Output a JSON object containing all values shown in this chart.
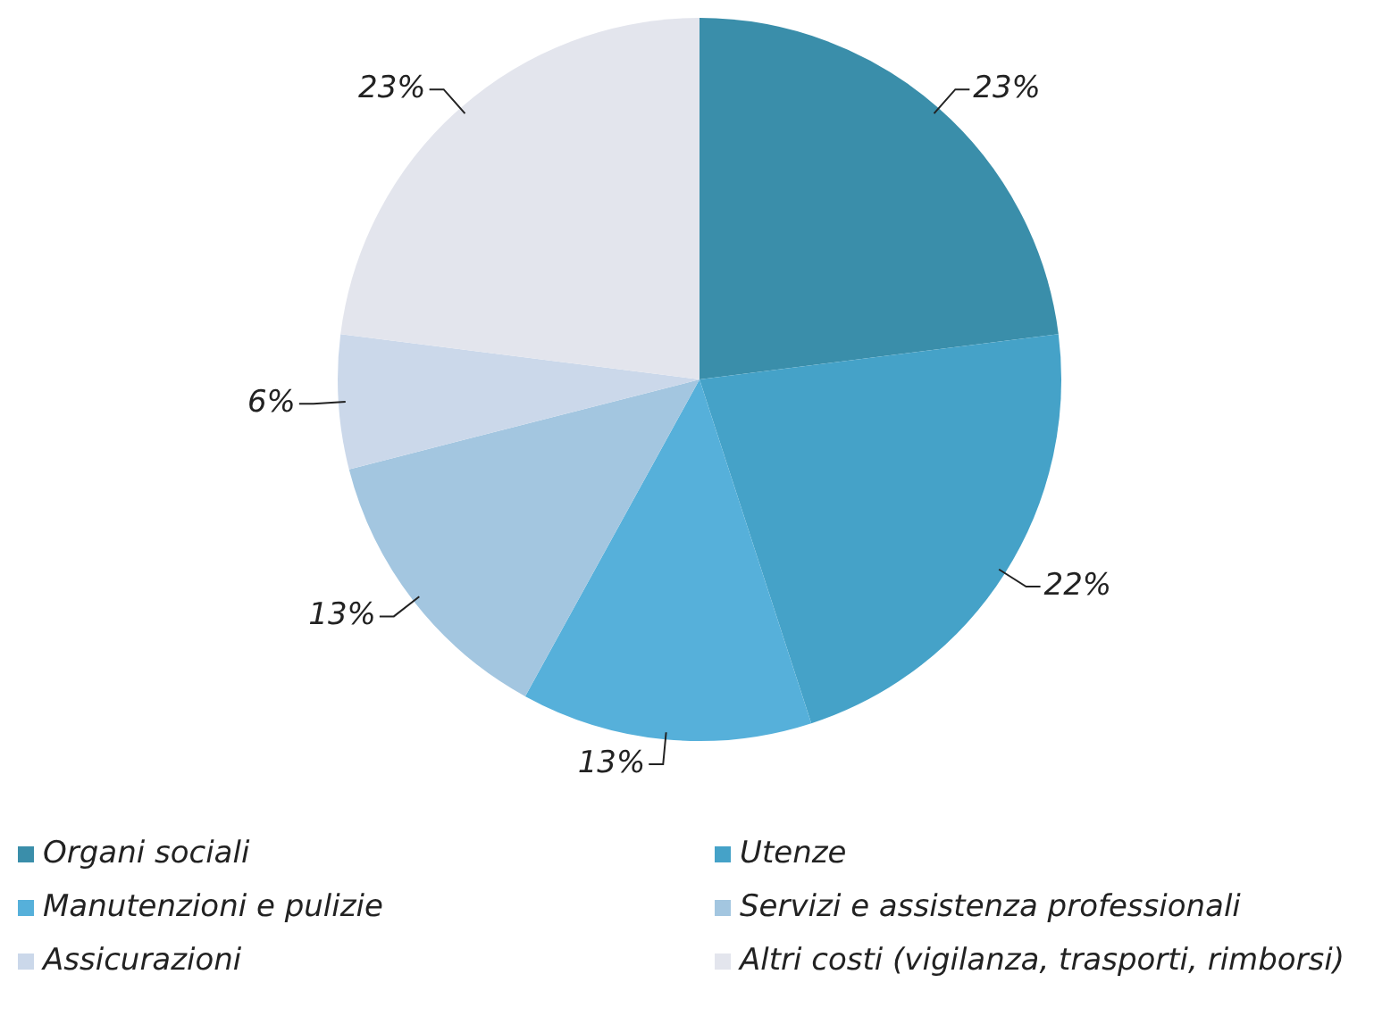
{
  "chart_data": {
    "type": "pie",
    "categories": [
      "Organi sociali",
      "Utenze",
      "Manutenzioni e pulizie",
      "Servizi e assistenza professionali",
      "Assicurazioni",
      "Altri costi (vigilanza, trasporti, rimborsi)"
    ],
    "values": [
      23,
      22,
      13,
      13,
      6,
      23
    ],
    "colors": [
      "#3a8eaa",
      "#45a2c8",
      "#56b0da",
      "#a3c6e0",
      "#cbd8ea",
      "#e3e5ed"
    ],
    "value_labels": [
      "23%",
      "22%",
      "13%",
      "13%",
      "6%",
      "23%"
    ],
    "legend": "bottom"
  }
}
